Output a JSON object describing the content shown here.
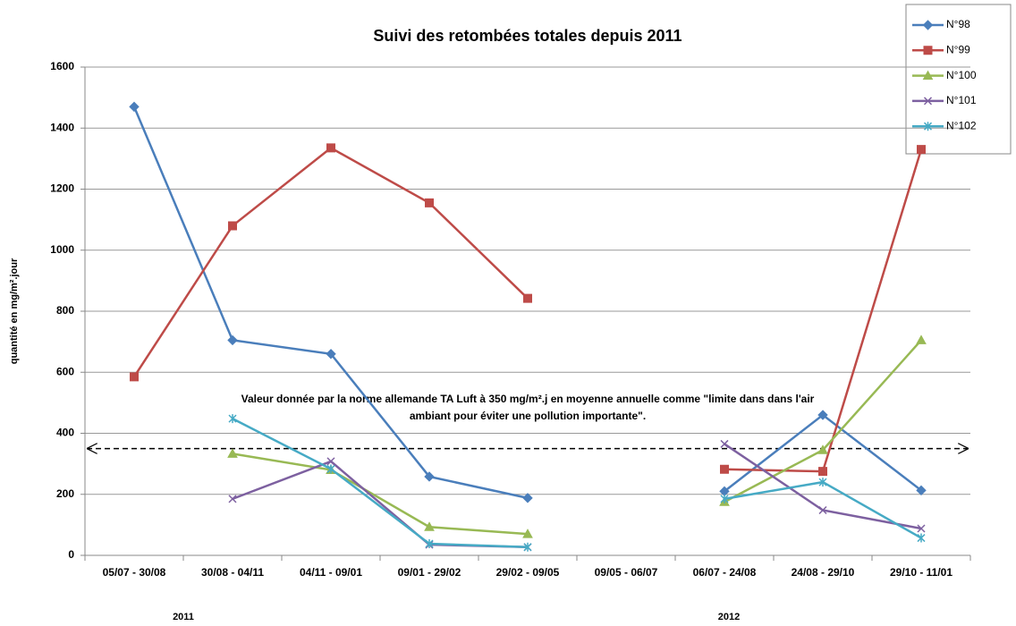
{
  "chart_data": {
    "type": "line",
    "title": "Suivi des retombées totales depuis 2011",
    "y_label": "quantité en mg/m².jour",
    "categories": [
      "05/07 - 30/08",
      "30/08 - 04/11",
      "04/11 - 09/01",
      "09/01 - 29/02",
      "29/02 - 09/05",
      "09/05 - 06/07",
      "06/07 - 24/08",
      "24/08 - 29/10",
      "29/10 - 11/01"
    ],
    "year_labels": [
      "2011",
      "2012"
    ],
    "series": [
      {
        "name": "N°98",
        "color": "#4a7ebb",
        "marker": "diamond",
        "values": [
          1470,
          705,
          660,
          258,
          188,
          null,
          210,
          460,
          213
        ]
      },
      {
        "name": "N°99",
        "color": "#be4b48",
        "marker": "square",
        "values": [
          585,
          1080,
          1335,
          1155,
          842,
          null,
          282,
          275,
          1330
        ]
      },
      {
        "name": "N°100",
        "color": "#98b954",
        "marker": "triangle",
        "values": [
          null,
          333,
          280,
          93,
          70,
          null,
          175,
          345,
          705
        ]
      },
      {
        "name": "N°101",
        "color": "#7d60a0",
        "marker": "x",
        "values": [
          null,
          185,
          308,
          35,
          27,
          null,
          365,
          148,
          88
        ]
      },
      {
        "name": "N°102",
        "color": "#46aac5",
        "marker": "asterisk",
        "values": [
          null,
          448,
          283,
          38,
          27,
          null,
          185,
          240,
          57
        ]
      }
    ],
    "reference_line": 350,
    "annotation": [
      "Valeur donnée par la norme allemande TA Luft à 350 mg/m².j en moyenne annuelle comme \"limite dans dans l'air",
      "ambiant pour éviter une pollution importante\"."
    ],
    "ylim": [
      0,
      1600
    ],
    "yticks": [
      0,
      200,
      400,
      600,
      800,
      1000,
      1200,
      1400,
      1600
    ],
    "grid": true,
    "legend": "top-right"
  }
}
